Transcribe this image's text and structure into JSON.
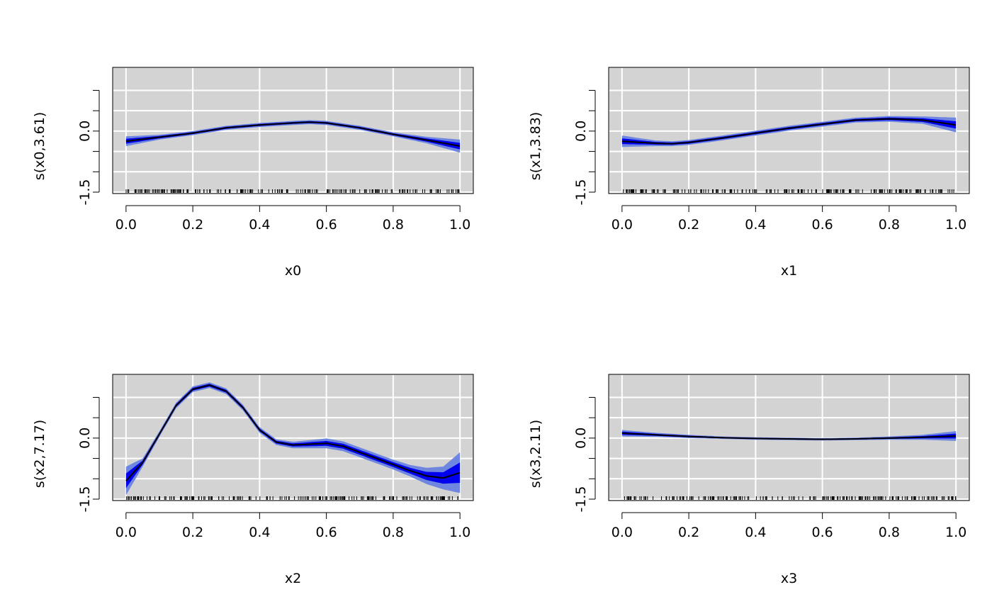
{
  "colors": {
    "panel_bg": "#d3d3d3",
    "grid": "#ffffff",
    "outer_band": "#6f86e0",
    "inner_band": "#0000ee",
    "fit_line": "#000000",
    "rug": "#000000"
  },
  "chart_data": [
    {
      "type": "line",
      "xlabel": "x0",
      "ylabel": "s(x0,3.61)",
      "xlim": [
        0,
        1
      ],
      "ylim": [
        -1.5,
        1.5
      ],
      "x_ticks": [
        "0.0",
        "0.2",
        "0.4",
        "0.6",
        "0.8",
        "1.0"
      ],
      "y_tick_values": [
        -1.5,
        -1.0,
        -0.5,
        0.0,
        0.5,
        1.0
      ],
      "y_tick_labels": [
        "-1.5",
        "",
        "",
        "0.0",
        "",
        ""
      ],
      "grid": true,
      "x": [
        0.0,
        0.1,
        0.2,
        0.3,
        0.4,
        0.5,
        0.55,
        0.6,
        0.7,
        0.8,
        0.9,
        1.0
      ],
      "fit": [
        -0.25,
        -0.15,
        -0.05,
        0.08,
        0.15,
        0.2,
        0.22,
        0.2,
        0.08,
        -0.08,
        -0.22,
        -0.37
      ],
      "outer_halfwidth": [
        0.12,
        0.06,
        0.05,
        0.05,
        0.05,
        0.05,
        0.05,
        0.05,
        0.05,
        0.05,
        0.08,
        0.16
      ],
      "inner_halfwidth": [
        0.06,
        0.03,
        0.025,
        0.025,
        0.025,
        0.025,
        0.025,
        0.025,
        0.025,
        0.025,
        0.04,
        0.08
      ],
      "rug_count": 200
    },
    {
      "type": "line",
      "xlabel": "x1",
      "ylabel": "s(x1,3.83)",
      "xlim": [
        0,
        1
      ],
      "ylim": [
        -1.5,
        1.5
      ],
      "x_ticks": [
        "0.0",
        "0.2",
        "0.4",
        "0.6",
        "0.8",
        "1.0"
      ],
      "y_tick_values": [
        -1.5,
        -1.0,
        -0.5,
        0.0,
        0.5,
        1.0
      ],
      "y_tick_labels": [
        "-1.5",
        "",
        "",
        "0.0",
        "",
        ""
      ],
      "grid": true,
      "x": [
        0.0,
        0.1,
        0.15,
        0.2,
        0.3,
        0.4,
        0.5,
        0.6,
        0.7,
        0.8,
        0.9,
        1.0
      ],
      "fit": [
        -0.25,
        -0.3,
        -0.31,
        -0.28,
        -0.17,
        -0.05,
        0.07,
        0.17,
        0.27,
        0.3,
        0.27,
        0.15
      ],
      "outer_halfwidth": [
        0.14,
        0.07,
        0.06,
        0.06,
        0.06,
        0.06,
        0.06,
        0.06,
        0.06,
        0.07,
        0.09,
        0.18
      ],
      "inner_halfwidth": [
        0.07,
        0.035,
        0.03,
        0.03,
        0.03,
        0.03,
        0.03,
        0.03,
        0.03,
        0.035,
        0.045,
        0.09
      ],
      "rug_count": 200
    },
    {
      "type": "line",
      "xlabel": "x2",
      "ylabel": "s(x2,7.17)",
      "xlim": [
        0,
        1
      ],
      "ylim": [
        -1.5,
        1.5
      ],
      "x_ticks": [
        "0.0",
        "0.2",
        "0.4",
        "0.6",
        "0.8",
        "1.0"
      ],
      "y_tick_values": [
        -1.5,
        -1.0,
        -0.5,
        0.0,
        0.5,
        1.0
      ],
      "y_tick_labels": [
        "-1.5",
        "",
        "",
        "0.0",
        "",
        ""
      ],
      "grid": true,
      "x": [
        0.0,
        0.05,
        0.1,
        0.15,
        0.2,
        0.25,
        0.3,
        0.35,
        0.4,
        0.45,
        0.5,
        0.55,
        0.6,
        0.65,
        0.7,
        0.75,
        0.8,
        0.85,
        0.9,
        0.95,
        1.0
      ],
      "fit": [
        -1.05,
        -0.6,
        0.1,
        0.8,
        1.2,
        1.3,
        1.15,
        0.75,
        0.2,
        -0.1,
        -0.17,
        -0.15,
        -0.13,
        -0.2,
        -0.35,
        -0.5,
        -0.65,
        -0.8,
        -0.93,
        -0.98,
        -0.85
      ],
      "outer_halfwidth": [
        0.35,
        0.1,
        0.07,
        0.07,
        0.07,
        0.07,
        0.07,
        0.07,
        0.07,
        0.07,
        0.08,
        0.1,
        0.12,
        0.12,
        0.12,
        0.12,
        0.12,
        0.14,
        0.2,
        0.28,
        0.5
      ],
      "inner_halfwidth": [
        0.18,
        0.05,
        0.035,
        0.035,
        0.035,
        0.035,
        0.035,
        0.035,
        0.035,
        0.035,
        0.04,
        0.05,
        0.06,
        0.06,
        0.06,
        0.06,
        0.06,
        0.07,
        0.1,
        0.14,
        0.25
      ],
      "rug_count": 200
    },
    {
      "type": "line",
      "xlabel": "x3",
      "ylabel": "s(x3,2.11)",
      "xlim": [
        0,
        1
      ],
      "ylim": [
        -1.5,
        1.5
      ],
      "x_ticks": [
        "0.0",
        "0.2",
        "0.4",
        "0.6",
        "0.8",
        "1.0"
      ],
      "y_tick_values": [
        -1.5,
        -1.0,
        -0.5,
        0.0,
        0.5,
        1.0
      ],
      "y_tick_labels": [
        "-1.5",
        "",
        "",
        "0.0",
        "",
        ""
      ],
      "grid": true,
      "x": [
        0.0,
        0.1,
        0.2,
        0.3,
        0.4,
        0.5,
        0.6,
        0.7,
        0.8,
        0.9,
        1.0
      ],
      "fit": [
        0.12,
        0.08,
        0.04,
        0.01,
        -0.01,
        -0.02,
        -0.03,
        -0.02,
        0.0,
        0.02,
        0.05
      ],
      "outer_halfwidth": [
        0.08,
        0.05,
        0.04,
        0.03,
        0.03,
        0.03,
        0.03,
        0.03,
        0.04,
        0.06,
        0.12
      ],
      "inner_halfwidth": [
        0.04,
        0.025,
        0.02,
        0.015,
        0.015,
        0.015,
        0.015,
        0.015,
        0.02,
        0.03,
        0.06
      ],
      "rug_count": 200
    }
  ]
}
